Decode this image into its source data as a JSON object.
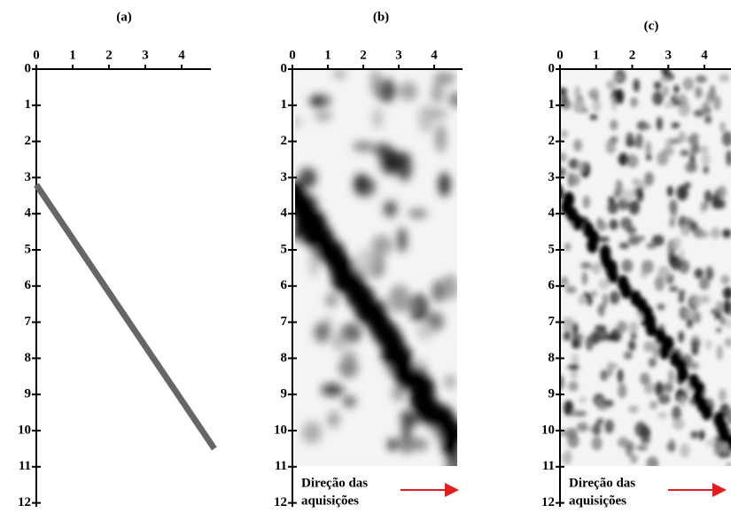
{
  "panels": [
    {
      "label": "(a)",
      "xticks": [
        0,
        1,
        2,
        3,
        4
      ],
      "yticks": [
        0,
        1,
        2,
        3,
        4,
        5,
        6,
        7,
        8,
        9,
        10,
        11,
        12
      ],
      "line": {
        "x": [
          0,
          4.9
        ],
        "y": [
          3.2,
          10.5
        ]
      }
    },
    {
      "label": "(b)",
      "xticks": [
        0,
        1,
        2,
        3,
        4
      ],
      "yticks": [
        0,
        1,
        2,
        3,
        4,
        5,
        6,
        7,
        8,
        9,
        10,
        11,
        12
      ],
      "annotation": [
        "Direção das",
        "aquisições"
      ]
    },
    {
      "label": "(c)",
      "xticks": [
        0,
        1,
        2,
        3,
        4
      ],
      "yticks": [
        0,
        1,
        2,
        3,
        4,
        5,
        6,
        7,
        8,
        9,
        10,
        11,
        12
      ],
      "annotation": [
        "Direção das",
        "aquisições"
      ]
    }
  ]
}
